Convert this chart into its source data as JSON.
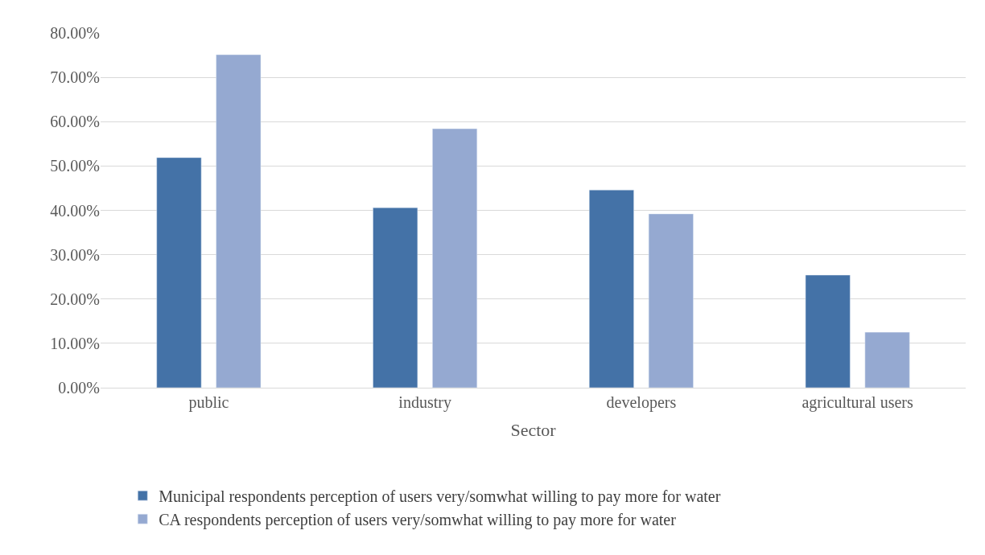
{
  "chart_data": {
    "type": "bar",
    "xlabel": "Sector",
    "categories": [
      "public",
      "industry",
      "developers",
      "agricultural users"
    ],
    "series": [
      {
        "name": "Municipal respondents perception of users very/somwhat willing to pay more for water",
        "color": "#4472a7",
        "values": [
          51.9,
          40.6,
          44.6,
          25.4
        ]
      },
      {
        "name": "CA respondents perception of users very/somwhat willing to pay more for water",
        "color": "#95a9d1",
        "values": [
          75.1,
          58.4,
          39.2,
          12.5
        ]
      }
    ],
    "ylim": [
      0,
      80
    ],
    "yticks": [
      {
        "value": 0,
        "label": "0.00%"
      },
      {
        "value": 10,
        "label": "10.00%"
      },
      {
        "value": 20,
        "label": "20.00%"
      },
      {
        "value": 30,
        "label": "30.00%"
      },
      {
        "value": 40,
        "label": "40.00%"
      },
      {
        "value": 50,
        "label": "50.00%"
      },
      {
        "value": 60,
        "label": "60.00%"
      },
      {
        "value": 70,
        "label": "70.00%"
      },
      {
        "value": 80,
        "label": "80.00%"
      }
    ],
    "grid": "y",
    "legend": "bottom"
  }
}
